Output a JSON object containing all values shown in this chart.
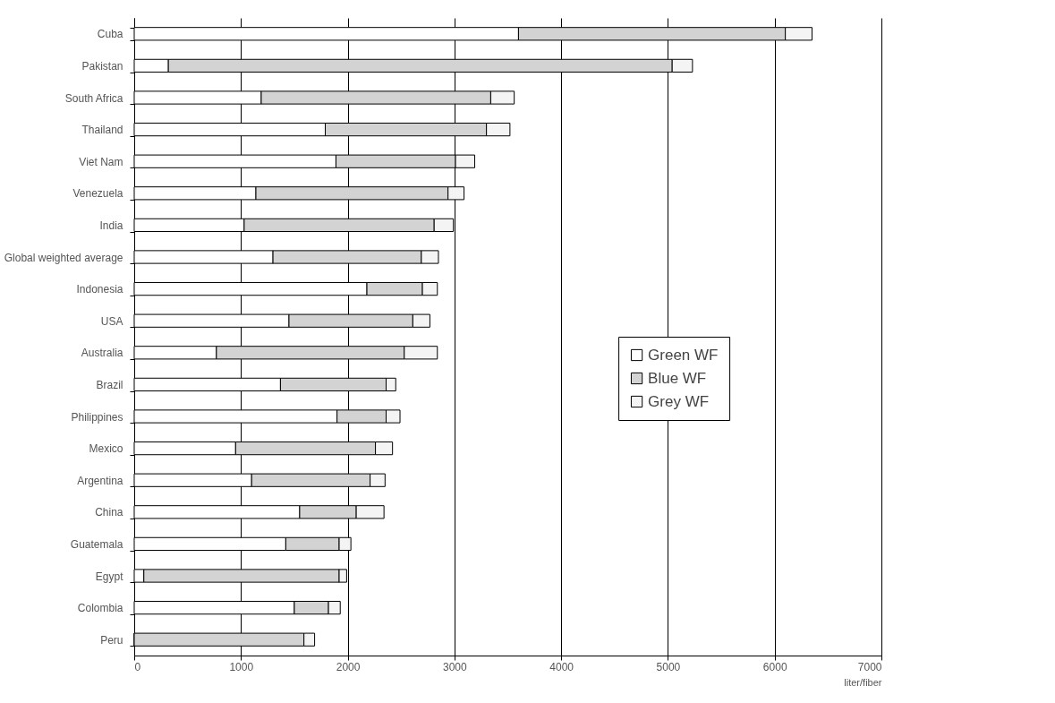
{
  "chart_data": {
    "type": "bar",
    "orientation": "horizontal",
    "stacked": true,
    "categories": [
      "Cuba",
      "Pakistan",
      "South Africa",
      "Thailand",
      "Viet Nam",
      "Venezuela",
      "India",
      "Global weighted average",
      "Indonesia",
      "USA",
      "Australia",
      "Brazil",
      "Philippines",
      "Mexico",
      "Argentina",
      "China",
      "Guatemala",
      "Egypt",
      "Colombia",
      "Peru"
    ],
    "series": [
      {
        "name": "Green WF",
        "color": "#ffffff",
        "values": [
          3600,
          320,
          1190,
          1790,
          1890,
          1140,
          1030,
          1300,
          2180,
          1450,
          770,
          1370,
          1900,
          950,
          1100,
          1550,
          1420,
          90,
          1500,
          0
        ]
      },
      {
        "name": "Blue WF",
        "color": "#d3d3d3",
        "values": [
          2500,
          4720,
          2150,
          1510,
          1120,
          1800,
          1780,
          1390,
          520,
          1160,
          1760,
          990,
          460,
          1310,
          1110,
          530,
          500,
          1830,
          320,
          1590
        ]
      },
      {
        "name": "Grey WF",
        "color": "#f4f4f4",
        "values": [
          250,
          190,
          220,
          220,
          180,
          150,
          180,
          160,
          140,
          160,
          310,
          90,
          130,
          160,
          140,
          260,
          110,
          70,
          110,
          100
        ]
      }
    ],
    "xlim": [
      0,
      7000
    ],
    "xticks": [
      0,
      1000,
      2000,
      3000,
      4000,
      5000,
      6000,
      7000
    ],
    "xlabel": "liter/fiber",
    "grid": "x",
    "legend": "right"
  }
}
